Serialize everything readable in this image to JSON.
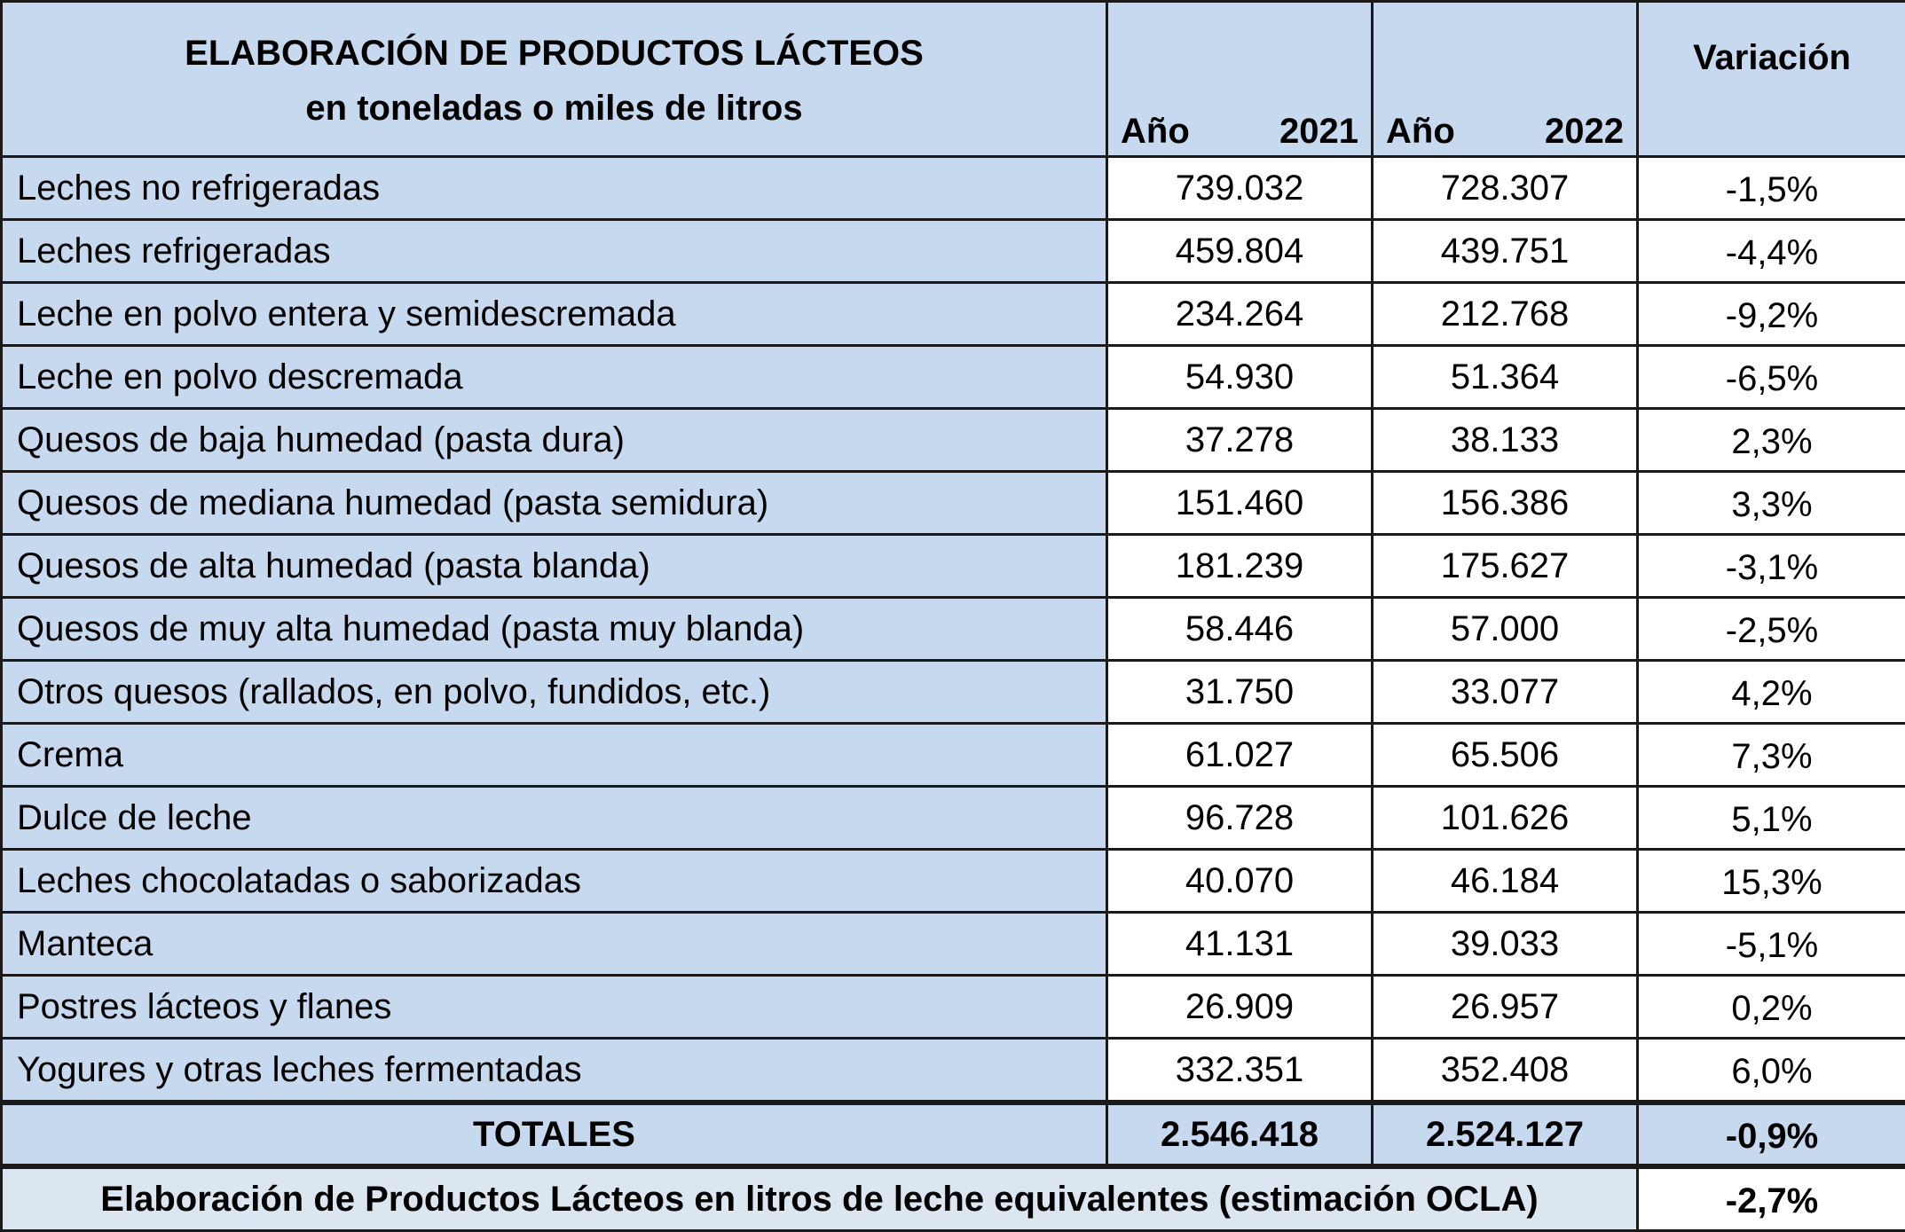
{
  "header": {
    "title_line1": "ELABORACIÓN DE PRODUCTOS LÁCTEOS",
    "title_line2": "en toneladas o miles de litros",
    "year_label": "Año",
    "year1": "2021",
    "year2": "2022",
    "variation": "Variación"
  },
  "rows": [
    {
      "label": "Leches no refrigeradas",
      "y2021": "739.032",
      "y2022": "728.307",
      "var": "-1,5%"
    },
    {
      "label": "Leches refrigeradas",
      "y2021": "459.804",
      "y2022": "439.751",
      "var": "-4,4%"
    },
    {
      "label": "Leche en polvo entera y semidescremada",
      "y2021": "234.264",
      "y2022": "212.768",
      "var": "-9,2%"
    },
    {
      "label": "Leche en polvo descremada",
      "y2021": "54.930",
      "y2022": "51.364",
      "var": "-6,5%"
    },
    {
      "label": "Quesos de baja humedad (pasta dura)",
      "y2021": "37.278",
      "y2022": "38.133",
      "var": "2,3%"
    },
    {
      "label": "Quesos de mediana humedad (pasta semidura)",
      "y2021": "151.460",
      "y2022": "156.386",
      "var": "3,3%"
    },
    {
      "label": "Quesos de alta humedad (pasta blanda)",
      "y2021": "181.239",
      "y2022": "175.627",
      "var": "-3,1%"
    },
    {
      "label": "Quesos de muy alta humedad (pasta muy blanda)",
      "y2021": "58.446",
      "y2022": "57.000",
      "var": "-2,5%"
    },
    {
      "label": "Otros quesos (rallados, en polvo, fundidos, etc.)",
      "y2021": "31.750",
      "y2022": "33.077",
      "var": "4,2%"
    },
    {
      "label": "Crema",
      "y2021": "61.027",
      "y2022": "65.506",
      "var": "7,3%"
    },
    {
      "label": "Dulce de leche",
      "y2021": "96.728",
      "y2022": "101.626",
      "var": "5,1%"
    },
    {
      "label": "Leches chocolatadas o saborizadas",
      "y2021": "40.070",
      "y2022": "46.184",
      "var": "15,3%"
    },
    {
      "label": "Manteca",
      "y2021": "41.131",
      "y2022": "39.033",
      "var": "-5,1%"
    },
    {
      "label": "Postres lácteos y flanes",
      "y2021": "26.909",
      "y2022": "26.957",
      "var": "0,2%"
    },
    {
      "label": "Yogures y otras leches fermentadas",
      "y2021": "332.351",
      "y2022": "352.408",
      "var": "6,0%"
    }
  ],
  "totals": {
    "label": "TOTALES",
    "y2021": "2.546.418",
    "y2022": "2.524.127",
    "var": "-0,9%"
  },
  "equivalent": {
    "label": "Elaboración de Productos Lácteos en litros de leche equivalentes (estimación OCLA)",
    "var": "-2,7%"
  },
  "colors": {
    "header_fill": "#c6d9ee",
    "label_fill": "#c6d9ee",
    "equivalent_fill": "#dce6f1",
    "border": "#1a1a1a"
  }
}
